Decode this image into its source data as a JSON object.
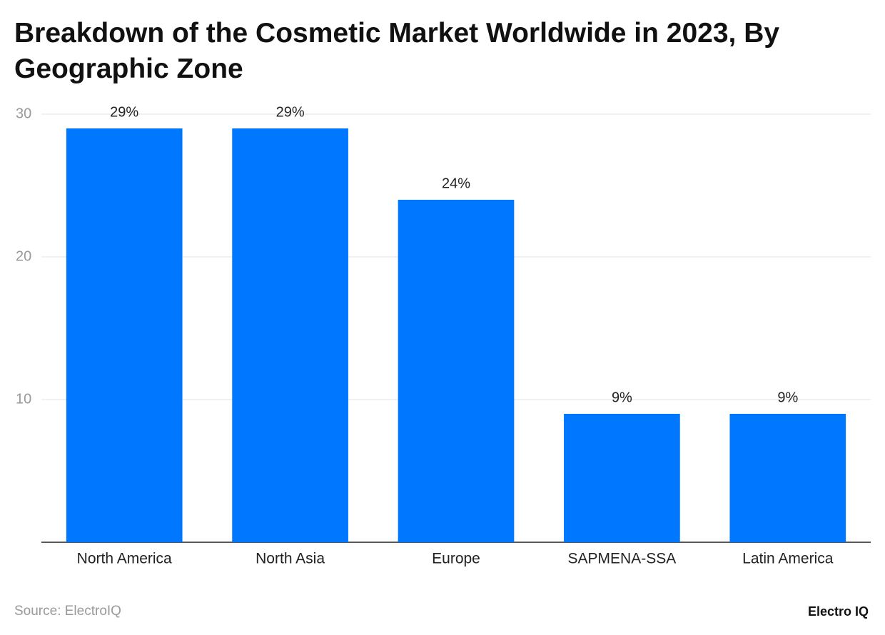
{
  "chart_data": {
    "type": "bar",
    "title": "Breakdown of the Cosmetic Market Worldwide in 2023, By Geographic Zone",
    "categories": [
      "North America",
      "North Asia",
      "Europe",
      "SAPMENA-SSA",
      "Latin America"
    ],
    "values": [
      29,
      29,
      24,
      9,
      9
    ],
    "value_labels": [
      "29%",
      "29%",
      "24%",
      "9%",
      "9%"
    ],
    "color": "#0077ff",
    "ylim": [
      0,
      30
    ],
    "yticks": [
      10,
      20,
      30
    ],
    "grid": true,
    "source": "Source: ElectroIQ",
    "brand": "Electro IQ"
  }
}
